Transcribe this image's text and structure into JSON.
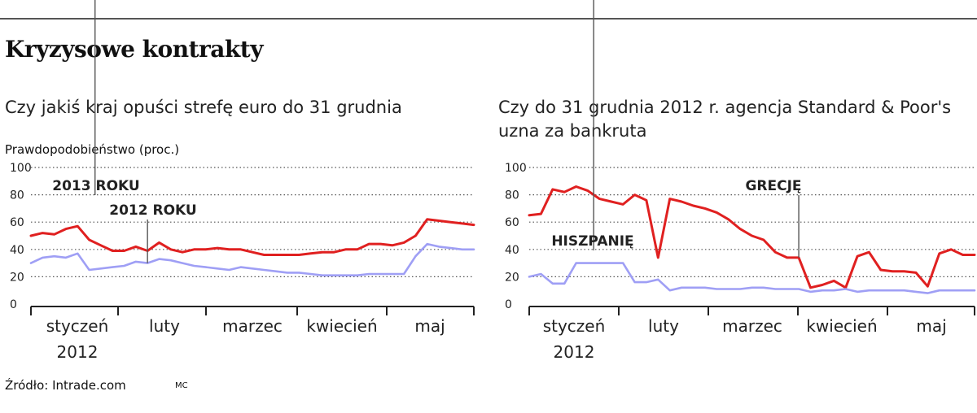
{
  "title": "Kryzysowe kontrakty",
  "source": "Źródło: Intrade.com",
  "author": "MC",
  "chart_data": [
    {
      "type": "line",
      "title": "Czy jakiś kraj opuści strefę euro do 31 grudnia",
      "ylabel": "Prawdopodobieństwo (proc.)",
      "ylim": [
        0,
        100
      ],
      "yticks": [
        0,
        20,
        40,
        60,
        80,
        100
      ],
      "grid": true,
      "month_labels": [
        "styczeń",
        "luty",
        "marzec",
        "kwiecień",
        "maj"
      ],
      "year_label": "2012",
      "x": [
        0,
        4,
        8,
        12,
        16,
        20,
        24,
        28,
        32,
        36,
        40,
        44,
        48,
        52,
        56,
        60,
        64,
        68,
        72,
        76,
        80,
        84,
        88,
        92,
        96,
        100,
        104,
        108,
        112,
        116,
        120,
        124,
        128,
        132,
        136,
        140,
        144,
        148,
        152
      ],
      "series": [
        {
          "name": "2013 ROKU",
          "color": "#e02020",
          "values": [
            50,
            52,
            51,
            55,
            57,
            47,
            43,
            39,
            39,
            42,
            39,
            45,
            40,
            38,
            40,
            40,
            41,
            40,
            40,
            38,
            36,
            36,
            36,
            36,
            37,
            38,
            38,
            40,
            40,
            44,
            44,
            43,
            45,
            50,
            62,
            61,
            60,
            59,
            58
          ]
        },
        {
          "name": "2012 ROKU",
          "color": "#9f9ff5",
          "values": [
            30,
            34,
            35,
            34,
            37,
            25,
            26,
            27,
            28,
            31,
            30,
            33,
            32,
            30,
            28,
            27,
            26,
            25,
            27,
            26,
            25,
            24,
            23,
            23,
            22,
            21,
            21,
            21,
            21,
            22,
            22,
            22,
            22,
            35,
            44,
            42,
            41,
            40,
            40
          ]
        }
      ],
      "annotations": [
        {
          "text": "2013 ROKU",
          "series": 0,
          "x": 22
        },
        {
          "text": "2012 ROKU",
          "series": 1,
          "x": 40
        }
      ]
    },
    {
      "type": "line",
      "title": "Czy do 31 grudnia 2012 r. agencja Standard & Poor's uzna za bankruta",
      "ylim": [
        0,
        100
      ],
      "yticks": [
        0,
        20,
        40,
        60,
        80,
        100
      ],
      "grid": true,
      "month_labels": [
        "styczeń",
        "luty",
        "marzec",
        "kwiecień",
        "maj"
      ],
      "year_label": "2012",
      "x": [
        0,
        4,
        8,
        12,
        16,
        20,
        24,
        28,
        32,
        36,
        40,
        44,
        48,
        52,
        56,
        60,
        64,
        68,
        72,
        76,
        80,
        84,
        88,
        92,
        96,
        100,
        104,
        108,
        112,
        116,
        120,
        124,
        128,
        132,
        136,
        140,
        144,
        148,
        152
      ],
      "series": [
        {
          "name": "GRECJĘ",
          "color": "#e02020",
          "values": [
            65,
            66,
            84,
            82,
            86,
            83,
            77,
            75,
            73,
            80,
            76,
            34,
            77,
            75,
            72,
            70,
            67,
            62,
            55,
            50,
            47,
            38,
            34,
            34,
            12,
            14,
            17,
            12,
            35,
            38,
            25,
            24,
            24,
            23,
            13,
            37,
            40,
            36,
            36
          ]
        },
        {
          "name": "HISZPANIĘ",
          "color": "#9f9ff5",
          "values": [
            20,
            22,
            15,
            15,
            30,
            30,
            30,
            30,
            30,
            16,
            16,
            18,
            10,
            12,
            12,
            12,
            11,
            11,
            11,
            12,
            12,
            11,
            11,
            11,
            9,
            10,
            10,
            11,
            9,
            10,
            10,
            10,
            10,
            9,
            8,
            10,
            10,
            10,
            10
          ]
        }
      ],
      "annotations": [
        {
          "text": "HISZPANIĘ",
          "series": 1,
          "x": 22
        },
        {
          "text": "GRECJĘ",
          "series": 0,
          "x": 92
        }
      ]
    }
  ]
}
